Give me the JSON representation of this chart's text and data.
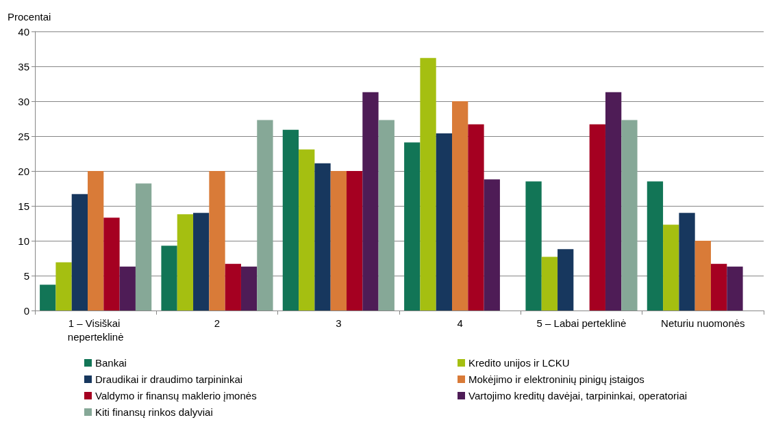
{
  "chart_data": {
    "type": "bar",
    "ylabel": "Procentai",
    "categories": [
      "1 – Visiškai neperteklinė",
      "2",
      "3",
      "4",
      "5 – Labai perteklinė",
      "Neturiu nuomonės"
    ],
    "series": [
      {
        "name": "Bankai",
        "color": "#127556",
        "values": [
          3.7,
          9.3,
          25.9,
          24.1,
          18.5,
          18.5
        ]
      },
      {
        "name": "Kredito unijos ir LCKU",
        "color": "#a5bf11",
        "values": [
          6.9,
          13.8,
          23.1,
          36.2,
          7.7,
          12.3
        ]
      },
      {
        "name": "Draudikai ir draudimo tarpininkai",
        "color": "#17375e",
        "values": [
          16.7,
          14.0,
          21.1,
          25.4,
          8.8,
          14.0
        ]
      },
      {
        "name": "Mokėjimo ir elektroninių pinigų įstaigos",
        "color": "#d97b38",
        "values": [
          20,
          20,
          20,
          30,
          0,
          10
        ]
      },
      {
        "name": "Valdymo ir finansų maklerio įmonės",
        "color": "#a50021",
        "values": [
          13.3,
          6.7,
          20,
          26.7,
          26.7,
          6.7
        ]
      },
      {
        "name": "Vartojimo kreditų davėjai, tarpininkai, operatoriai",
        "color": "#4e1c56",
        "values": [
          6.3,
          6.3,
          31.3,
          18.8,
          31.3,
          6.3
        ]
      },
      {
        "name": "Kiti finansų rinkos dalyviai",
        "color": "#86a897",
        "values": [
          18.2,
          27.3,
          27.3,
          0,
          27.3,
          0
        ]
      }
    ],
    "ylim": [
      0,
      40
    ],
    "yticks": [
      0,
      5,
      10,
      15,
      20,
      25,
      30,
      35,
      40
    ],
    "grid": "y",
    "legend": "bottom"
  }
}
